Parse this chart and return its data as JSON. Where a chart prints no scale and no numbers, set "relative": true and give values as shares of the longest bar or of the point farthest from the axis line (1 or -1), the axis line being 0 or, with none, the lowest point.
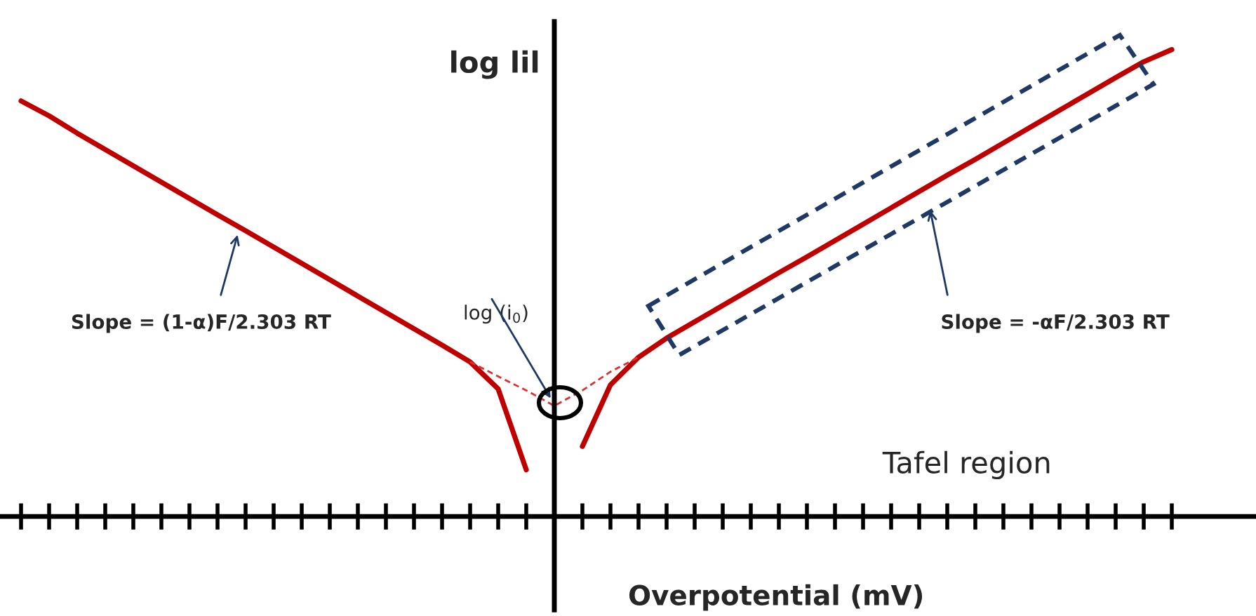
{
  "chart_data": {
    "type": "line",
    "relative": true,
    "xlabel": "Overpotential (mV)",
    "ylabel": "log lil",
    "tick_labels": false,
    "grid": false,
    "legend": false,
    "categories": [
      null,
      null,
      null,
      null,
      null,
      null,
      null,
      null,
      null,
      null,
      null,
      null,
      null,
      null,
      null,
      null,
      null,
      null,
      null,
      null,
      null,
      null,
      null,
      null,
      null,
      null,
      null,
      null,
      null,
      null,
      null,
      null,
      null,
      null,
      null,
      null,
      null,
      null,
      null,
      null,
      null,
      null
    ],
    "series": [
      {
        "color": "#c00000",
        "line_style": "solid",
        "values": [
          0.89,
          0.858,
          0.821,
          0.786,
          0.751,
          0.716,
          0.681,
          0.646,
          0.612,
          0.577,
          0.542,
          0.507,
          0.472,
          0.437,
          0.402,
          0.367,
          0.331,
          0.273,
          0.1,
          null,
          null,
          null,
          null,
          null,
          null,
          null,
          null,
          null,
          null,
          null,
          null,
          null,
          null,
          null,
          null,
          null,
          null,
          null,
          null,
          null,
          null,
          null
        ]
      },
      {
        "color": "#c00000",
        "line_style": "solid",
        "values": [
          null,
          null,
          null,
          null,
          null,
          null,
          null,
          null,
          null,
          null,
          null,
          null,
          null,
          null,
          null,
          null,
          null,
          null,
          null,
          null,
          0.15,
          0.282,
          0.341,
          0.382,
          0.417,
          0.452,
          0.487,
          0.522,
          0.556,
          0.591,
          0.626,
          0.661,
          0.696,
          0.731,
          0.765,
          0.8,
          0.835,
          0.87,
          0.905,
          0.94,
          0.974,
          1.0
        ]
      },
      {
        "color": "#e03030",
        "line_style": "dashed",
        "values": [
          null,
          null,
          null,
          null,
          null,
          null,
          null,
          null,
          null,
          null,
          null,
          null,
          null,
          null,
          null,
          null,
          0.331,
          0.3,
          0.27,
          0.237,
          0.27,
          0.31,
          0.341,
          null,
          null,
          null,
          null,
          null,
          null,
          null,
          null,
          null,
          null,
          null,
          null,
          null,
          null,
          null,
          null,
          null,
          null,
          null
        ]
      }
    ],
    "annotations": [
      "Slope = (1-α)F/2.303 RT",
      "log (i$_{0}$)",
      "Slope = -αF/2.303 RT",
      "Tafel region"
    ]
  }
}
